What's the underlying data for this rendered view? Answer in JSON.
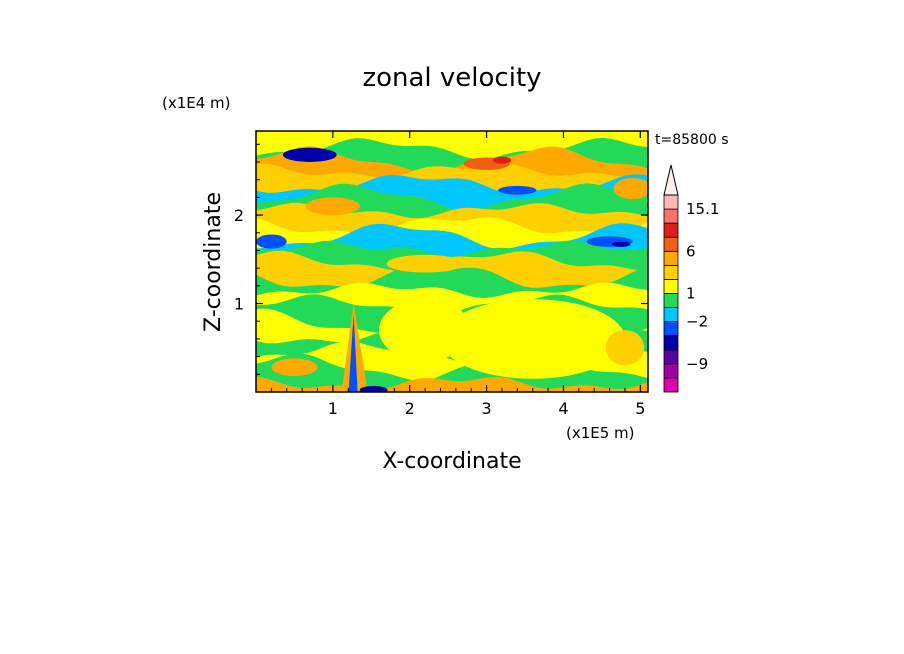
{
  "chart_data": {
    "type": "heatmap",
    "title": "zonal velocity",
    "xlabel": "X-coordinate",
    "ylabel": "Z-coordinate",
    "x_scale_label": "(x1E5 m)",
    "y_scale_label": "(x1E4 m)",
    "time_label": "t=85800 s",
    "xlim": [
      0,
      5.1
    ],
    "ylim": [
      0,
      2.95
    ],
    "x_ticks": [
      1,
      2,
      3,
      4,
      5
    ],
    "y_ticks": [
      1,
      2
    ],
    "colorbar": {
      "levels": [
        -9,
        -2,
        1,
        6,
        15.1
      ],
      "labels": [
        "15.1",
        "6",
        "1",
        "-2",
        "-9"
      ],
      "colors": [
        "#e000b0",
        "#a000a8",
        "#5a00a0",
        "#0000a8",
        "#0050ff",
        "#00c8ff",
        "#22d95a",
        "#ffff00",
        "#ffd000",
        "#ffa800",
        "#f06010",
        "#e02010",
        "#ff6f6f",
        "#ffb8b8"
      ]
    },
    "bands": [
      {
        "z": 0.1,
        "level": 9
      },
      {
        "z": 0.28,
        "level": 6
      },
      {
        "z": 0.45,
        "level": 7
      },
      {
        "z": 0.62,
        "level": 6
      },
      {
        "z": 0.8,
        "level": 7
      },
      {
        "z": 0.98,
        "level": 6
      },
      {
        "z": 1.15,
        "level": 7
      },
      {
        "z": 1.3,
        "level": 6
      },
      {
        "z": 1.48,
        "level": 8
      },
      {
        "z": 1.62,
        "level": 6
      },
      {
        "z": 1.76,
        "level": 5
      },
      {
        "z": 1.88,
        "level": 7
      },
      {
        "z": 2.05,
        "level": 8
      },
      {
        "z": 2.2,
        "level": 6
      },
      {
        "z": 2.35,
        "level": 5
      },
      {
        "z": 2.5,
        "level": 8
      },
      {
        "z": 2.62,
        "level": 9
      },
      {
        "z": 2.75,
        "level": 6
      },
      {
        "z": 2.88,
        "level": 7
      }
    ],
    "blobs": [
      {
        "x": 0.7,
        "z": 2.68,
        "rx": 0.35,
        "rz": 0.08,
        "level": 3
      },
      {
        "x": 3.0,
        "z": 2.58,
        "rx": 0.3,
        "rz": 0.07,
        "level": 10
      },
      {
        "x": 3.2,
        "z": 2.62,
        "rx": 0.12,
        "rz": 0.04,
        "level": 11
      },
      {
        "x": 1.0,
        "z": 2.1,
        "rx": 0.35,
        "rz": 0.1,
        "level": 9
      },
      {
        "x": 4.9,
        "z": 2.3,
        "rx": 0.25,
        "rz": 0.12,
        "level": 9
      },
      {
        "x": 0.2,
        "z": 1.7,
        "rx": 0.2,
        "rz": 0.08,
        "level": 4
      },
      {
        "x": 4.6,
        "z": 1.7,
        "rx": 0.3,
        "rz": 0.06,
        "level": 4
      },
      {
        "x": 4.75,
        "z": 1.67,
        "rx": 0.12,
        "rz": 0.03,
        "level": 3
      },
      {
        "x": 3.4,
        "z": 2.28,
        "rx": 0.25,
        "rz": 0.05,
        "level": 4
      },
      {
        "x": 2.2,
        "z": 1.45,
        "rx": 0.5,
        "rz": 0.1,
        "level": 8
      },
      {
        "x": 3.6,
        "z": 0.6,
        "rx": 1.2,
        "rz": 0.45,
        "level": 7
      },
      {
        "x": 2.2,
        "z": 0.7,
        "rx": 0.6,
        "rz": 0.35,
        "level": 7
      },
      {
        "x": 0.5,
        "z": 0.28,
        "rx": 0.3,
        "rz": 0.1,
        "level": 9
      },
      {
        "x": 4.8,
        "z": 0.5,
        "rx": 0.25,
        "rz": 0.2,
        "level": 8
      }
    ],
    "spike": {
      "x": 1.27,
      "z_top": 1.0
    }
  }
}
